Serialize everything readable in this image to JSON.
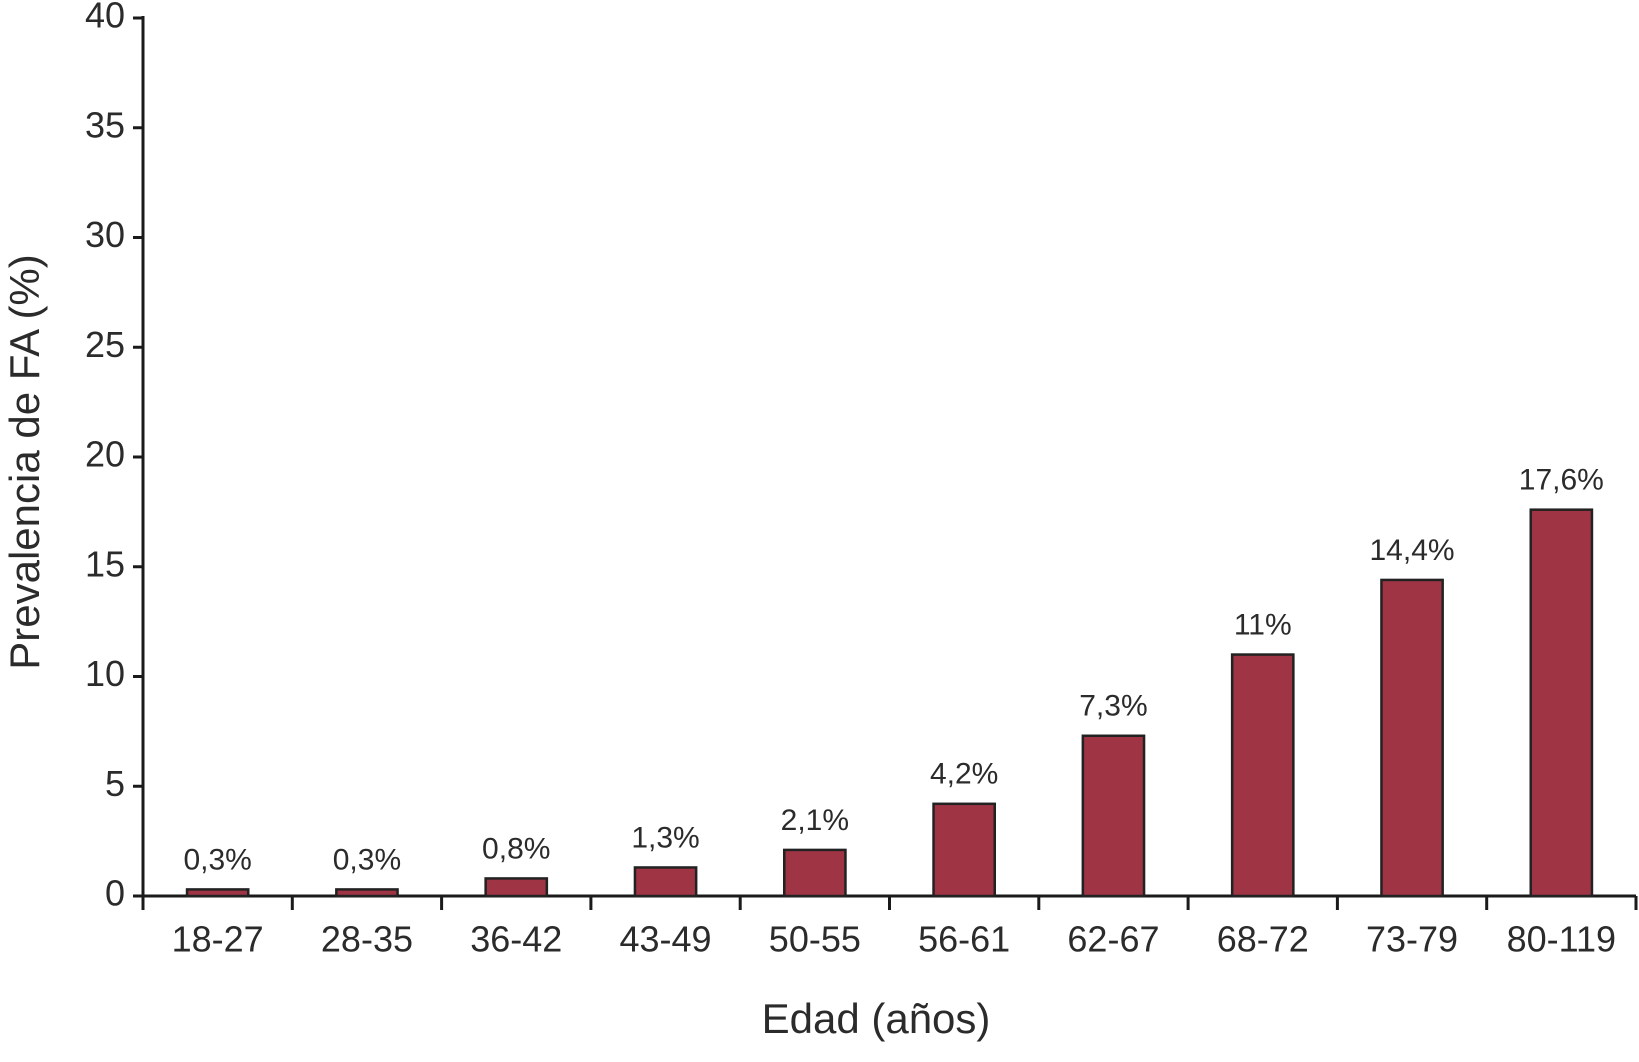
{
  "chart_data": {
    "type": "bar",
    "x_label": "Edad (años)",
    "y_label": "Prevalencia de FA (%)",
    "categories": [
      "18-27",
      "28-35",
      "36-42",
      "43-49",
      "50-55",
      "56-61",
      "62-67",
      "68-72",
      "73-79",
      "80-119"
    ],
    "values": [
      0.3,
      0.3,
      0.8,
      1.3,
      2.1,
      4.2,
      7.3,
      11,
      14.4,
      17.6
    ],
    "value_labels": [
      "0,3%",
      "0,3%",
      "0,8%",
      "1,3%",
      "2,1%",
      "4,2%",
      "7,3%",
      "11%",
      "14,4%",
      "17,6%"
    ],
    "color": "#9e3444",
    "ylim": [
      0,
      40
    ],
    "yticks": [
      0,
      5,
      10,
      15,
      20,
      25,
      30,
      35,
      40
    ],
    "grid": false
  }
}
